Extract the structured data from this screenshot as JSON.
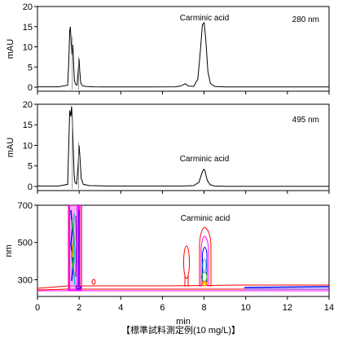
{
  "chart_data": [
    {
      "type": "line",
      "ylabel": "mAU",
      "wavelength_label": "280 nm",
      "annotation": "Carminic acid",
      "xlim": [
        0,
        14
      ],
      "ylim": [
        -1,
        20
      ],
      "yticks": [
        0,
        5,
        10,
        15,
        20
      ],
      "series": [
        {
          "x": [
            0,
            0.5,
            1.0,
            1.45,
            1.5,
            1.55,
            1.58,
            1.62,
            1.66,
            1.7,
            1.74,
            1.78,
            1.82,
            1.9,
            1.97,
            2.0,
            2.03,
            2.08,
            2.15,
            2.3,
            2.7,
            3.5,
            5.0,
            6.6,
            6.85,
            7.0,
            7.1,
            7.25,
            7.5,
            7.7,
            7.82,
            7.92,
            8.0,
            8.08,
            8.18,
            8.3,
            8.5,
            9.0,
            10,
            11,
            12,
            13,
            14
          ],
          "y": [
            0.1,
            0.1,
            0.1,
            0.5,
            6,
            14,
            15,
            11,
            8,
            10.5,
            5,
            1.5,
            0.8,
            0.5,
            5,
            7,
            4,
            1,
            0.4,
            0.2,
            0.1,
            0.05,
            0.05,
            0.1,
            0.25,
            0.6,
            0.85,
            0.3,
            0.2,
            2,
            9,
            15.5,
            16,
            12,
            4,
            1,
            0.2,
            0.05,
            0.05,
            0.05,
            0.05,
            0.05,
            0.05
          ]
        }
      ]
    },
    {
      "type": "line",
      "ylabel": "mAU",
      "wavelength_label": "495 nm",
      "annotation": "Carminic acid",
      "xlim": [
        0,
        14
      ],
      "ylim": [
        -1,
        20
      ],
      "yticks": [
        0,
        5,
        10,
        15,
        20
      ],
      "series": [
        {
          "x": [
            0,
            0.5,
            1.0,
            1.45,
            1.5,
            1.55,
            1.6,
            1.64,
            1.68,
            1.72,
            1.76,
            1.8,
            1.88,
            1.95,
            2.0,
            2.04,
            2.1,
            2.2,
            2.5,
            3.5,
            5.0,
            6.5,
            7.0,
            7.5,
            7.75,
            7.85,
            7.95,
            8.0,
            8.06,
            8.15,
            8.3,
            8.5,
            9.0,
            10,
            11,
            12,
            13,
            14
          ],
          "y": [
            0.1,
            0.1,
            0.1,
            0.5,
            10,
            18.5,
            17,
            19.5,
            15,
            9,
            3,
            1,
            0.6,
            5,
            10,
            7,
            2,
            0.5,
            0.2,
            0.1,
            0.1,
            0.1,
            0.1,
            0.2,
            1,
            2.5,
            4,
            4.2,
            3.5,
            1.5,
            0.4,
            0.1,
            0.05,
            0.05,
            0.05,
            0.05,
            0.05,
            0.05
          ]
        }
      ]
    },
    {
      "type": "heatmap",
      "subtype": "contour",
      "xlabel": "min",
      "ylabel": "nm",
      "annotation": "Carminic acid",
      "xlim": [
        0,
        14
      ],
      "ylim": [
        210,
        700
      ],
      "xticks": [
        0,
        2,
        4,
        6,
        8,
        10,
        12,
        14
      ],
      "yticks": [
        300,
        500,
        700
      ],
      "colors": [
        "#ff0000",
        "#ff00ff",
        "#0000ff",
        "#00cccc",
        "#00cc00",
        "#ff8800"
      ]
    }
  ],
  "caption": "【標準試料測定例(10 mg/L)】"
}
